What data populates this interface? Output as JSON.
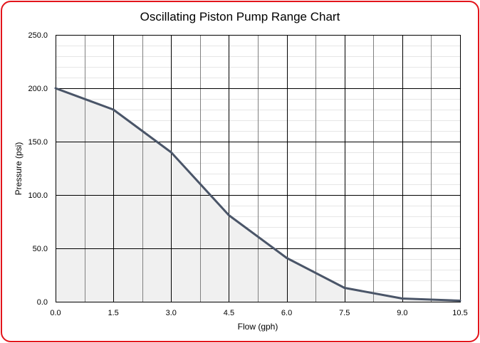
{
  "chart_data": {
    "type": "area",
    "title": "Oscillating Piston Pump Range Chart",
    "xlabel": "Flow (gph)",
    "ylabel": "Pressure (psi)",
    "xlim": [
      0,
      10.5
    ],
    "ylim": [
      0,
      250
    ],
    "x_ticks": [
      "0.0",
      "1.5",
      "3.0",
      "4.5",
      "6.0",
      "7.5",
      "9.0",
      "10.5"
    ],
    "y_ticks": [
      "0.0",
      "50.0",
      "100.0",
      "150.0",
      "200.0",
      "250.0"
    ],
    "grid": true,
    "legend": "none",
    "series": [
      {
        "x": [
          0.0,
          1.5,
          3.0,
          4.5,
          6.0,
          7.5,
          9.0,
          10.5
        ],
        "y": [
          200,
          180,
          140,
          81,
          41,
          13,
          3,
          1
        ]
      }
    ],
    "colors": {
      "line": "#4a5568",
      "fill": "#f0f0f0",
      "border": "#e3141b",
      "major_grid": "#000000",
      "minor_grid": "#808080",
      "fine_grid": "#e6e6e6"
    }
  }
}
